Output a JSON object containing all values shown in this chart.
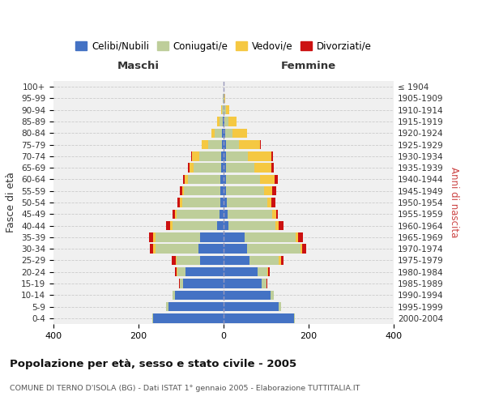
{
  "age_groups": [
    "100+",
    "95-99",
    "90-94",
    "85-89",
    "80-84",
    "75-79",
    "70-74",
    "65-69",
    "60-64",
    "55-59",
    "50-54",
    "45-49",
    "40-44",
    "35-39",
    "30-34",
    "25-29",
    "20-24",
    "15-19",
    "10-14",
    "5-9",
    "0-4"
  ],
  "birth_years": [
    "≤ 1904",
    "1905-1909",
    "1910-1914",
    "1915-1919",
    "1920-1924",
    "1925-1929",
    "1930-1934",
    "1935-1939",
    "1940-1944",
    "1945-1949",
    "1950-1954",
    "1955-1959",
    "1960-1964",
    "1965-1969",
    "1970-1974",
    "1975-1979",
    "1980-1984",
    "1985-1989",
    "1990-1994",
    "1995-1999",
    "2000-2004"
  ],
  "male_celibi": [
    0,
    0,
    0,
    2,
    3,
    4,
    5,
    5,
    8,
    8,
    8,
    10,
    15,
    55,
    60,
    55,
    90,
    95,
    115,
    130,
    165
  ],
  "male_coniugati": [
    0,
    2,
    4,
    8,
    18,
    32,
    52,
    65,
    75,
    85,
    90,
    100,
    105,
    105,
    100,
    55,
    18,
    8,
    5,
    5,
    3
  ],
  "male_vedovi": [
    0,
    0,
    2,
    5,
    8,
    15,
    18,
    10,
    8,
    5,
    5,
    5,
    5,
    5,
    5,
    3,
    2,
    0,
    0,
    0,
    0
  ],
  "male_divorziati": [
    0,
    0,
    0,
    0,
    0,
    0,
    2,
    4,
    5,
    5,
    5,
    5,
    10,
    10,
    8,
    8,
    5,
    2,
    0,
    0,
    0
  ],
  "female_nubili": [
    0,
    0,
    0,
    2,
    3,
    5,
    5,
    5,
    5,
    5,
    8,
    10,
    12,
    50,
    55,
    60,
    80,
    90,
    110,
    130,
    165
  ],
  "female_coniugate": [
    0,
    2,
    6,
    10,
    18,
    32,
    52,
    68,
    80,
    90,
    95,
    105,
    110,
    120,
    125,
    70,
    22,
    10,
    8,
    5,
    3
  ],
  "female_vedove": [
    0,
    2,
    8,
    18,
    35,
    48,
    55,
    40,
    35,
    20,
    10,
    8,
    8,
    5,
    5,
    5,
    2,
    0,
    0,
    0,
    0
  ],
  "female_divorziate": [
    0,
    0,
    0,
    0,
    0,
    2,
    5,
    5,
    8,
    8,
    8,
    5,
    10,
    12,
    10,
    5,
    5,
    2,
    0,
    0,
    0
  ],
  "colors": {
    "celibi": "#4472C4",
    "coniugati": "#BECE9A",
    "vedovi": "#F5C842",
    "divorziati": "#CC1111"
  },
  "xlim": 400,
  "title": "Popolazione per età, sesso e stato civile - 2005",
  "subtitle": "COMUNE DI TERNO D'ISOLA (BG) - Dati ISTAT 1° gennaio 2005 - Elaborazione TUTTITALIA.IT",
  "ylabel_left": "Fasce di età",
  "ylabel_right": "Anni di nascita",
  "legend_labels": [
    "Celibi/Nubili",
    "Coniugati/e",
    "Vedovi/e",
    "Divorziati/e"
  ],
  "maschi_label": "Maschi",
  "femmine_label": "Femmine",
  "bg_color": "#FFFFFF",
  "plot_bg": "#F0F0F0",
  "grid_color": "#CCCCCC"
}
